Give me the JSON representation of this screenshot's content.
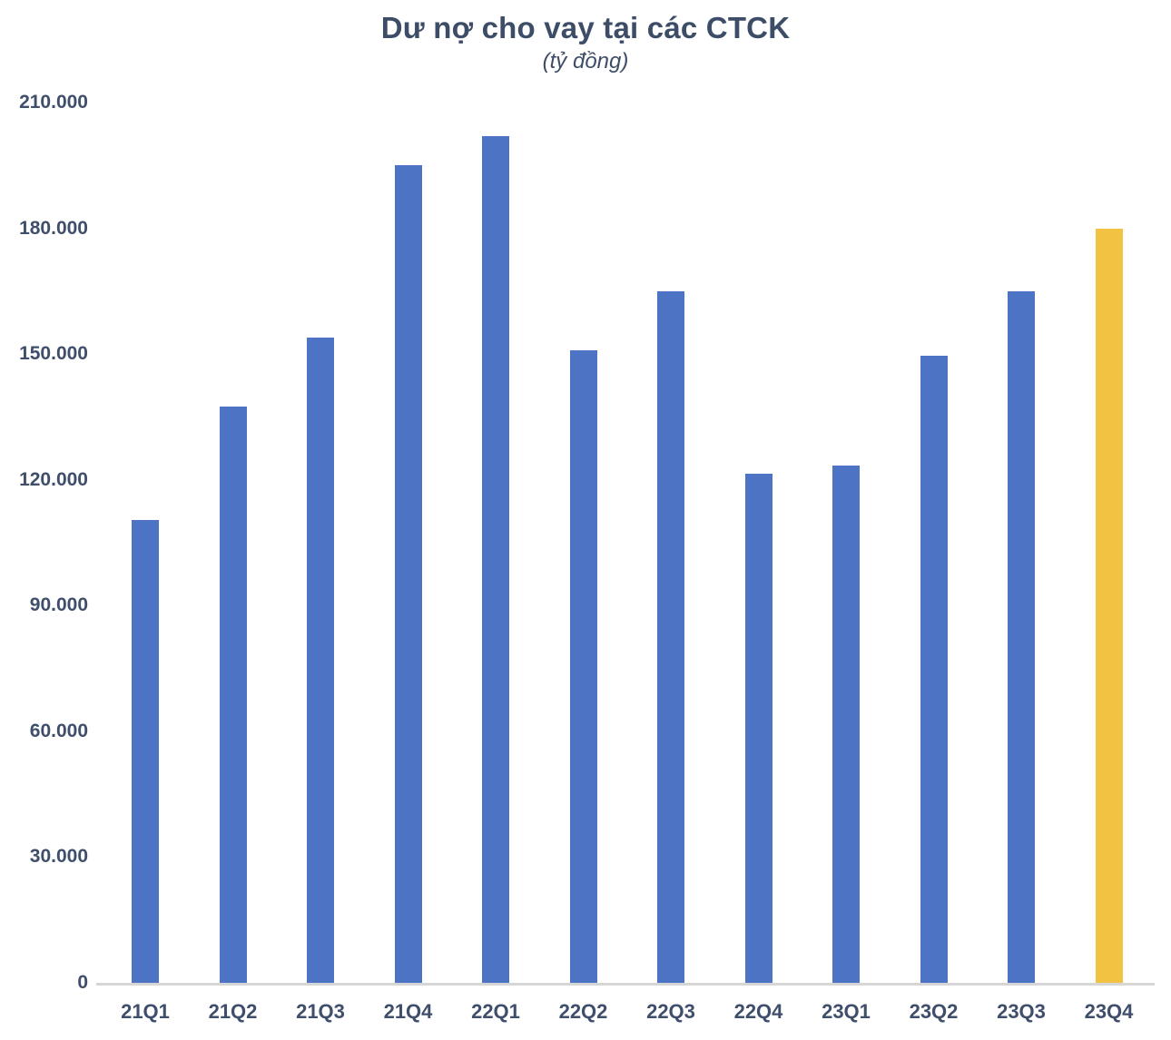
{
  "chart": {
    "title": "Dư nợ cho vay tại các CTCK",
    "subtitle": "(tỷ đồng)"
  },
  "chart_data": {
    "type": "bar",
    "title": "Dư nợ cho vay tại các CTCK",
    "subtitle": "(tỷ đồng)",
    "categories": [
      "21Q1",
      "21Q2",
      "21Q3",
      "21Q4",
      "22Q1",
      "22Q2",
      "22Q3",
      "22Q4",
      "23Q1",
      "23Q2",
      "23Q3",
      "23Q4"
    ],
    "values": [
      110500,
      137500,
      154000,
      195000,
      202000,
      151000,
      165000,
      121500,
      123500,
      149500,
      165000,
      180000
    ],
    "highlight_category": "23Q4",
    "xlabel": "",
    "ylabel": "",
    "ylim": [
      0,
      210000
    ],
    "ytick_step": 30000,
    "ytick_labels": [
      "0",
      "30.000",
      "60.000",
      "90.000",
      "120.000",
      "150.000",
      "180.000",
      "210.000"
    ],
    "grid": false,
    "legend": false,
    "colors": {
      "bar_default": "#4c73c4",
      "bar_highlight": "#f2c342",
      "text": "#3f4f6b",
      "axis_line": "#d6d6d6"
    }
  }
}
